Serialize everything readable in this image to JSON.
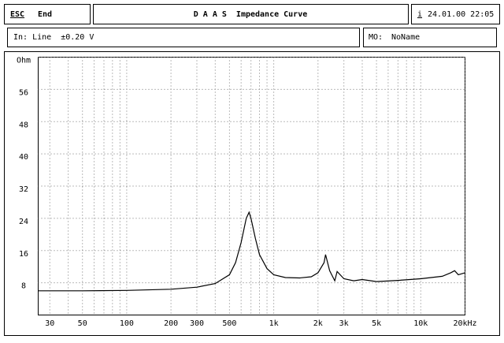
{
  "header": {
    "esc": "ESC",
    "end": "End",
    "title": "D A A S  Impedance Curve",
    "date_key": "i",
    "date": "24.01.00 22:05",
    "input": "In: Line  ±0.20 V",
    "mem_key": "MO:",
    "mem_name": "NoName"
  },
  "chart_data": {
    "type": "line",
    "log_x": true,
    "grid": true,
    "xlim": [
      25,
      20000
    ],
    "ylim": [
      0,
      64
    ],
    "xticks": [
      30,
      50,
      100,
      200,
      300,
      500,
      {
        "value": 1000,
        "label": "1k"
      },
      {
        "value": 2000,
        "label": "2k"
      },
      {
        "value": 3000,
        "label": "3k"
      },
      {
        "value": 5000,
        "label": "5k"
      },
      {
        "value": 10000,
        "label": "10k"
      },
      {
        "value": 20000,
        "label": "20kHz"
      }
    ],
    "xminorticks": [
      40,
      60,
      70,
      80,
      90,
      400,
      600,
      700,
      800,
      900,
      4000,
      6000,
      7000,
      8000,
      9000
    ],
    "yticks": [
      8,
      16,
      24,
      32,
      40,
      48,
      56,
      {
        "value": 64,
        "label": "Ohm"
      }
    ],
    "x": [
      25,
      50,
      100,
      200,
      300,
      400,
      500,
      550,
      600,
      650,
      680,
      700,
      750,
      800,
      900,
      1000,
      1200,
      1500,
      1800,
      2000,
      2200,
      2250,
      2400,
      2600,
      2700,
      3000,
      3500,
      4000,
      5000,
      7000,
      10000,
      14000,
      16000,
      17000,
      18000,
      20000
    ],
    "series": [
      {
        "color": "#000000",
        "values": [
          6,
          6,
          6.1,
          6.4,
          6.9,
          7.8,
          10,
          13,
          18,
          24,
          25.5,
          24,
          19,
          15,
          11.5,
          10,
          9.3,
          9.2,
          9.5,
          10.5,
          13,
          15,
          11,
          8.5,
          10.8,
          9,
          8.5,
          8.8,
          8.3,
          8.6,
          9,
          9.6,
          10.5,
          11,
          10,
          10.5
        ]
      }
    ]
  }
}
